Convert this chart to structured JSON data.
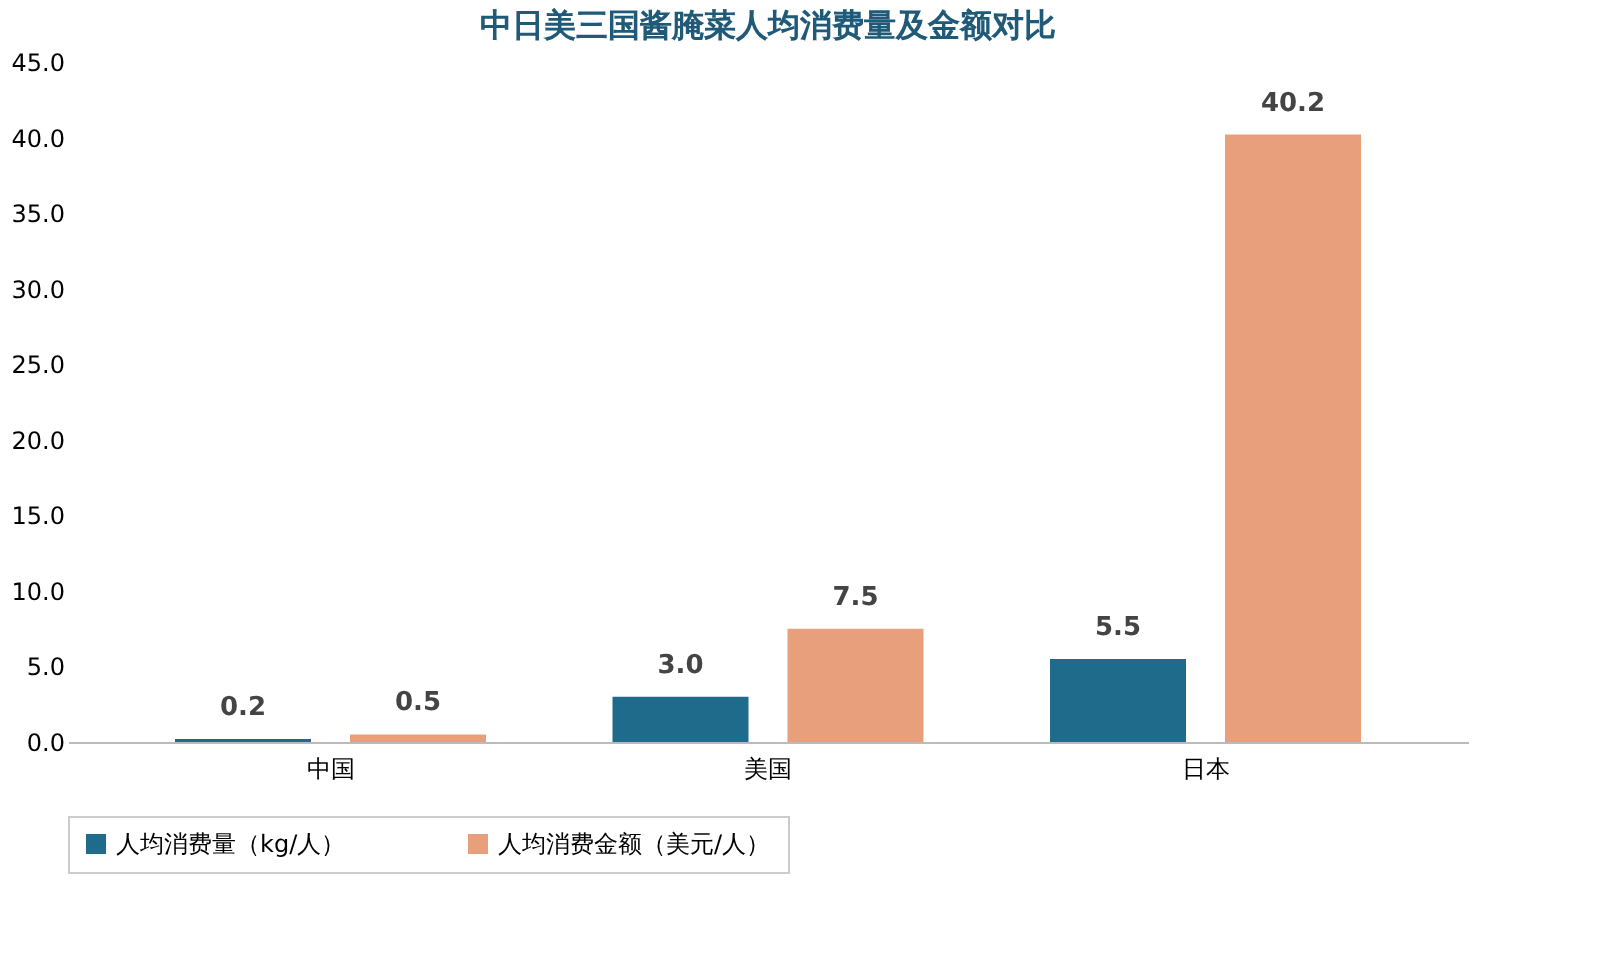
{
  "chart_data": {
    "type": "bar",
    "title": "中日美三国酱腌菜人均消费量及金额对比",
    "categories": [
      "中国",
      "美国",
      "日本"
    ],
    "series": [
      {
        "name": "人均消费量（kg/人）",
        "color": "#1f6b8c",
        "values": [
          0.2,
          3.0,
          5.5
        ],
        "value_labels": [
          "0.2",
          "3.0",
          "5.5"
        ]
      },
      {
        "name": "人均消费金额（美元/人）",
        "color": "#e8a07c",
        "values": [
          0.5,
          7.5,
          40.2
        ],
        "value_labels": [
          "0.5",
          "7.5",
          "40.2"
        ]
      }
    ],
    "ylim": [
      0,
      45
    ],
    "yticks": [
      {
        "value": 0,
        "label": "0.0"
      },
      {
        "value": 5,
        "label": "5.0"
      },
      {
        "value": 10,
        "label": "10.0"
      },
      {
        "value": 15,
        "label": "15.0"
      },
      {
        "value": 20,
        "label": "20.0"
      },
      {
        "value": 25,
        "label": "25.0"
      },
      {
        "value": 30,
        "label": "30.0"
      },
      {
        "value": 35,
        "label": "35.0"
      },
      {
        "value": 40,
        "label": "40.0"
      },
      {
        "value": 45,
        "label": "45.0"
      }
    ],
    "grid": false,
    "legend": "bottom"
  }
}
